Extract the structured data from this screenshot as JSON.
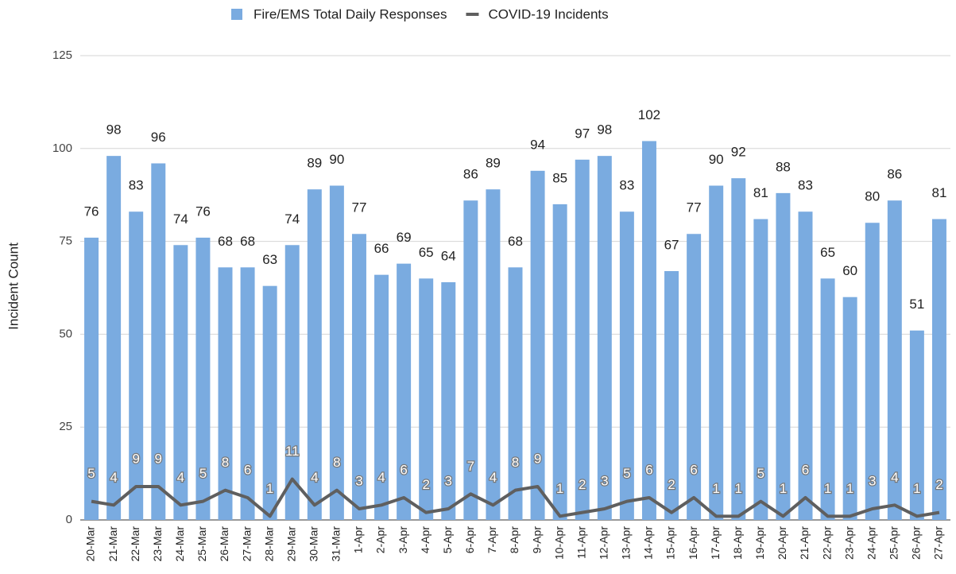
{
  "chart_data": {
    "type": "combo",
    "y_label": "Incident Count",
    "categories": [
      "20-Mar",
      "21-Mar",
      "22-Mar",
      "23-Mar",
      "24-Mar",
      "25-Mar",
      "26-Mar",
      "27-Mar",
      "28-Mar",
      "29-Mar",
      "30-Mar",
      "31-Mar",
      "1-Apr",
      "2-Apr",
      "3-Apr",
      "4-Apr",
      "5-Apr",
      "6-Apr",
      "7-Apr",
      "8-Apr",
      "9-Apr",
      "10-Apr",
      "11-Apr",
      "12-Apr",
      "13-Apr",
      "14-Apr",
      "15-Apr",
      "16-Apr",
      "17-Apr",
      "18-Apr",
      "19-Apr",
      "20-Apr",
      "21-Apr",
      "22-Apr",
      "23-Apr",
      "24-Apr",
      "25-Apr",
      "26-Apr",
      "27-Apr"
    ],
    "series": [
      {
        "name": "Fire/EMS Total Daily Responses",
        "type": "bar",
        "color": "#7aabe0",
        "values": [
          76,
          98,
          83,
          96,
          74,
          76,
          68,
          68,
          63,
          74,
          89,
          90,
          77,
          66,
          69,
          65,
          64,
          86,
          89,
          68,
          94,
          85,
          97,
          98,
          83,
          102,
          67,
          77,
          90,
          92,
          81,
          88,
          83,
          65,
          60,
          80,
          86,
          51,
          81
        ]
      },
      {
        "name": "COVID-19 Incidents",
        "type": "line",
        "color": "#5f5f5f",
        "values": [
          5,
          4,
          9,
          9,
          4,
          5,
          8,
          6,
          1,
          11,
          4,
          8,
          3,
          4,
          6,
          2,
          3,
          7,
          4,
          8,
          9,
          1,
          2,
          3,
          5,
          6,
          2,
          6,
          1,
          1,
          5,
          1,
          6,
          1,
          1,
          3,
          4,
          1,
          2
        ]
      }
    ],
    "ylim": [
      0,
      125
    ],
    "yticks": [
      0,
      25,
      50,
      75,
      100,
      125
    ],
    "grid": true,
    "legend": "top"
  }
}
